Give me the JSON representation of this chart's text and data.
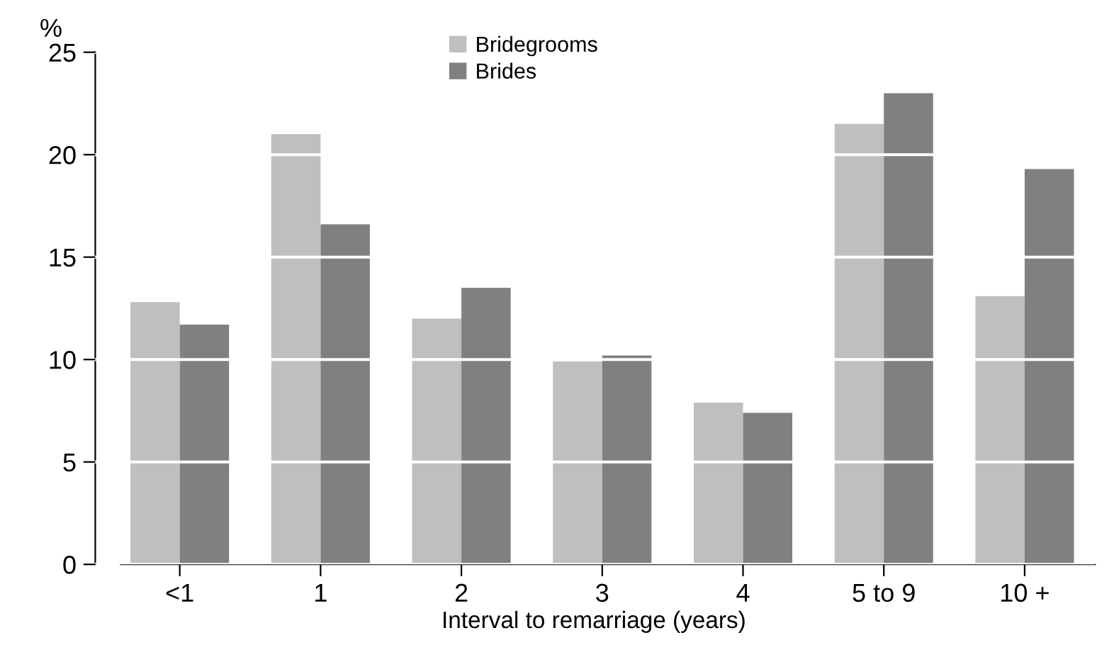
{
  "chart_data": {
    "type": "bar",
    "xlabel": "Interval to remarriage (years)",
    "ylabel": "%",
    "categories": [
      "<1",
      "1",
      "2",
      "3",
      "4",
      "5 to 9",
      "10 +"
    ],
    "series": [
      {
        "name": "Bridegrooms",
        "color": "#bfbfbf",
        "values": [
          12.8,
          21.0,
          12.0,
          9.9,
          7.9,
          21.5,
          13.1
        ]
      },
      {
        "name": "Brides",
        "color": "#808080",
        "values": [
          11.7,
          16.6,
          13.5,
          10.2,
          7.4,
          23.0,
          19.3
        ]
      }
    ],
    "ylim": [
      0,
      25
    ],
    "yticks": [
      0,
      5,
      10,
      15,
      20,
      25
    ],
    "grid": "y",
    "legend": "top"
  }
}
